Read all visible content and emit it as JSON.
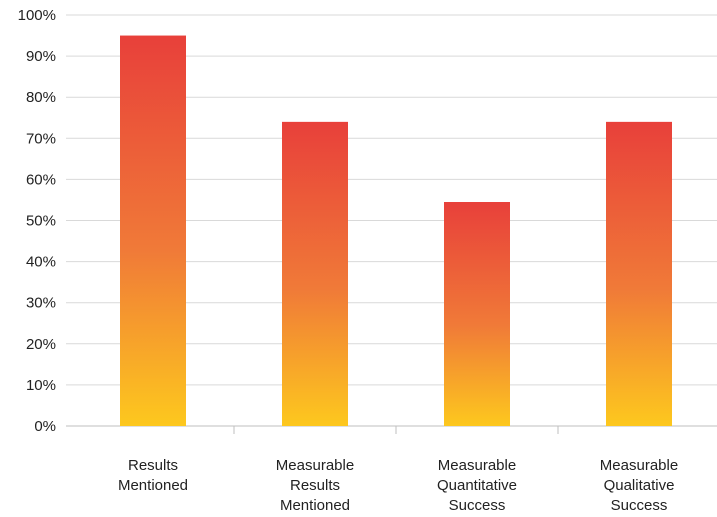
{
  "chart_data": {
    "type": "bar",
    "categories": [
      [
        "Results",
        "Mentioned"
      ],
      [
        "Measurable",
        "Results",
        "Mentioned"
      ],
      [
        "Measurable",
        "Quantitative",
        "Success"
      ],
      [
        "Measurable",
        "Qualitative",
        "Success"
      ]
    ],
    "values": [
      95,
      74,
      54.5,
      74
    ],
    "ylim": [
      0,
      100
    ],
    "yticks": [
      "0%",
      "10%",
      "20%",
      "30%",
      "40%",
      "50%",
      "60%",
      "70%",
      "80%",
      "90%",
      "100%"
    ],
    "grid": true,
    "colors": {
      "gradient_top": "#e8403a",
      "gradient_mid": "#f07a38",
      "gradient_bottom": "#fdc81e",
      "grid": "#d9d9d9",
      "axis": "#bfbfbf"
    }
  }
}
